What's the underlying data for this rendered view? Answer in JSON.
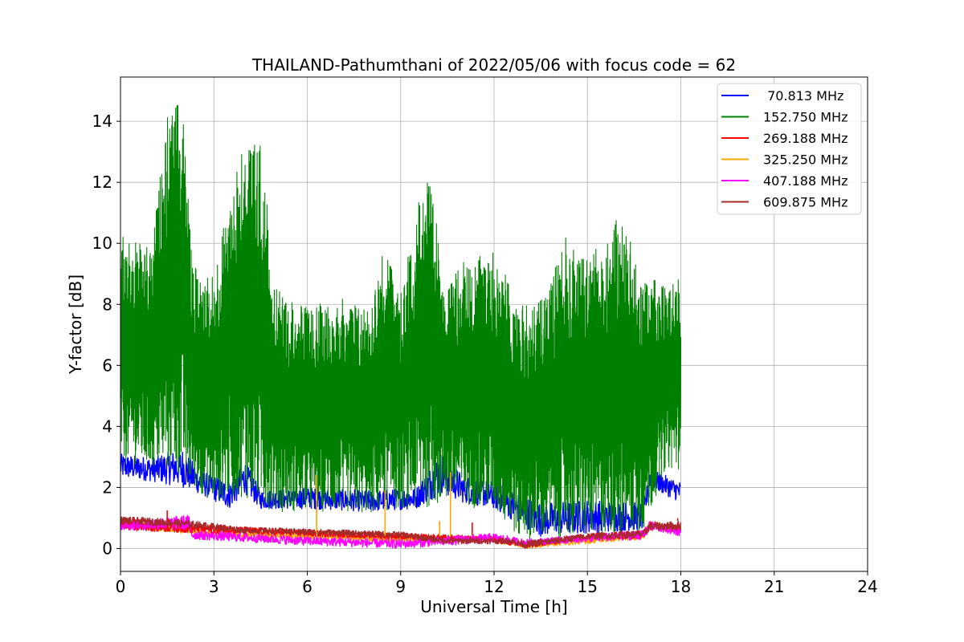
{
  "chart_data": {
    "type": "line",
    "title": "THAILAND-Pathumthani of 2022/05/06 with focus code = 62",
    "xlabel": "Universal Time [h]",
    "ylabel": "Y-factor [dB]",
    "xlim": [
      0,
      24
    ],
    "ylim": [
      -0.75,
      15.45
    ],
    "xticks": [
      0,
      3,
      6,
      9,
      12,
      15,
      18,
      21,
      24
    ],
    "yticks": [
      0,
      2,
      4,
      6,
      8,
      10,
      12,
      14
    ],
    "grid": true,
    "legend_position": "top-right",
    "series": [
      {
        "name": " 70.813 MHz",
        "color": "#0000ff",
        "band": [
          {
            "t": 0.0,
            "lo": 2.3,
            "hi": 3.1
          },
          {
            "t": 1.0,
            "lo": 2.2,
            "hi": 3.0
          },
          {
            "t": 2.0,
            "lo": 2.0,
            "hi": 3.3
          },
          {
            "t": 2.5,
            "lo": 1.8,
            "hi": 2.6
          },
          {
            "t": 3.5,
            "lo": 1.3,
            "hi": 2.2
          },
          {
            "t": 4.0,
            "lo": 1.8,
            "hi": 2.9
          },
          {
            "t": 4.5,
            "lo": 1.3,
            "hi": 1.9
          },
          {
            "t": 6.0,
            "lo": 1.3,
            "hi": 2.0
          },
          {
            "t": 8.0,
            "lo": 1.2,
            "hi": 1.9
          },
          {
            "t": 9.5,
            "lo": 1.3,
            "hi": 2.0
          },
          {
            "t": 10.3,
            "lo": 1.8,
            "hi": 3.2
          },
          {
            "t": 11.0,
            "lo": 1.5,
            "hi": 2.4
          },
          {
            "t": 12.0,
            "lo": 1.3,
            "hi": 2.2
          },
          {
            "t": 12.8,
            "lo": 0.8,
            "hi": 1.8
          },
          {
            "t": 13.5,
            "lo": 0.4,
            "hi": 1.5
          },
          {
            "t": 15.0,
            "lo": 0.5,
            "hi": 1.6
          },
          {
            "t": 16.8,
            "lo": 0.6,
            "hi": 1.5
          },
          {
            "t": 17.0,
            "lo": 2.0,
            "hi": 2.6
          },
          {
            "t": 18.0,
            "lo": 1.5,
            "hi": 2.2
          }
        ]
      },
      {
        "name": "152.750 MHz",
        "color": "#008000",
        "band": [
          {
            "t": 0.0,
            "lo": 2.9,
            "hi": 10.3
          },
          {
            "t": 1.0,
            "lo": 2.6,
            "hi": 9.8
          },
          {
            "t": 1.5,
            "lo": 2.5,
            "hi": 14.2
          },
          {
            "t": 2.0,
            "lo": 2.3,
            "hi": 14.7
          },
          {
            "t": 2.3,
            "lo": 2.0,
            "hi": 9.3
          },
          {
            "t": 3.0,
            "lo": 1.5,
            "hi": 9.0
          },
          {
            "t": 3.9,
            "lo": 1.7,
            "hi": 13.5
          },
          {
            "t": 4.5,
            "lo": 1.4,
            "hi": 13.3
          },
          {
            "t": 5.0,
            "lo": 1.2,
            "hi": 8.5
          },
          {
            "t": 6.0,
            "lo": 1.2,
            "hi": 7.9
          },
          {
            "t": 7.0,
            "lo": 1.2,
            "hi": 8.2
          },
          {
            "t": 8.0,
            "lo": 1.1,
            "hi": 8.0
          },
          {
            "t": 8.5,
            "lo": 1.2,
            "hi": 10.0
          },
          {
            "t": 9.0,
            "lo": 1.3,
            "hi": 8.3
          },
          {
            "t": 9.8,
            "lo": 1.3,
            "hi": 12.7
          },
          {
            "t": 10.5,
            "lo": 1.5,
            "hi": 8.6
          },
          {
            "t": 11.0,
            "lo": 1.4,
            "hi": 9.4
          },
          {
            "t": 12.0,
            "lo": 1.2,
            "hi": 9.8
          },
          {
            "t": 12.8,
            "lo": 0.3,
            "hi": 8.0
          },
          {
            "t": 13.5,
            "lo": 0.3,
            "hi": 8.2
          },
          {
            "t": 14.3,
            "lo": 0.3,
            "hi": 10.2
          },
          {
            "t": 15.0,
            "lo": 0.4,
            "hi": 9.5
          },
          {
            "t": 16.0,
            "lo": 0.4,
            "hi": 11.0
          },
          {
            "t": 16.8,
            "lo": 0.5,
            "hi": 9.0
          },
          {
            "t": 17.5,
            "lo": 2.6,
            "hi": 8.6
          },
          {
            "t": 18.0,
            "lo": 2.6,
            "hi": 9.0
          }
        ]
      },
      {
        "name": "269.188 MHz",
        "color": "#ff0000",
        "band": [
          {
            "t": 0.0,
            "lo": 0.6,
            "hi": 1.0
          },
          {
            "t": 2.5,
            "lo": 0.5,
            "hi": 0.8
          },
          {
            "t": 6.0,
            "lo": 0.4,
            "hi": 0.6
          },
          {
            "t": 9.0,
            "lo": 0.3,
            "hi": 0.5
          },
          {
            "t": 12.0,
            "lo": 0.2,
            "hi": 0.4
          },
          {
            "t": 13.0,
            "lo": 0.0,
            "hi": 0.2
          },
          {
            "t": 15.0,
            "lo": 0.3,
            "hi": 0.5
          },
          {
            "t": 16.8,
            "lo": 0.3,
            "hi": 0.6
          },
          {
            "t": 17.0,
            "lo": 0.6,
            "hi": 0.9
          },
          {
            "t": 18.0,
            "lo": 0.5,
            "hi": 0.8
          }
        ]
      },
      {
        "name": "325.250 MHz",
        "color": "#ffa500",
        "band": [
          {
            "t": 0.0,
            "lo": 0.7,
            "hi": 0.9
          },
          {
            "t": 3.0,
            "lo": 0.4,
            "hi": 0.6
          },
          {
            "t": 6.0,
            "lo": 0.3,
            "hi": 0.5
          },
          {
            "t": 9.0,
            "lo": 0.2,
            "hi": 0.4
          },
          {
            "t": 12.0,
            "lo": 0.2,
            "hi": 0.4
          },
          {
            "t": 13.0,
            "lo": 0.0,
            "hi": 0.2
          },
          {
            "t": 16.8,
            "lo": 0.3,
            "hi": 0.5
          },
          {
            "t": 17.0,
            "lo": 0.7,
            "hi": 0.9
          },
          {
            "t": 18.0,
            "lo": 0.5,
            "hi": 0.7
          }
        ]
      },
      {
        "name": "407.188 MHz",
        "color": "#ff00ff",
        "band": [
          {
            "t": 0.0,
            "lo": 0.6,
            "hi": 0.9
          },
          {
            "t": 2.2,
            "lo": 0.6,
            "hi": 1.1
          },
          {
            "t": 2.3,
            "lo": 0.3,
            "hi": 0.6
          },
          {
            "t": 6.0,
            "lo": 0.1,
            "hi": 0.4
          },
          {
            "t": 9.0,
            "lo": 0.0,
            "hi": 0.3
          },
          {
            "t": 12.0,
            "lo": 0.2,
            "hi": 0.5
          },
          {
            "t": 13.0,
            "lo": 0.1,
            "hi": 0.3
          },
          {
            "t": 16.8,
            "lo": 0.3,
            "hi": 0.6
          },
          {
            "t": 17.0,
            "lo": 0.6,
            "hi": 0.9
          },
          {
            "t": 18.0,
            "lo": 0.4,
            "hi": 0.7
          }
        ]
      },
      {
        "name": "609.875 MHz",
        "color": "#a52a2a",
        "band": [
          {
            "t": 0.0,
            "lo": 0.8,
            "hi": 1.05
          },
          {
            "t": 2.0,
            "lo": 0.7,
            "hi": 0.95
          },
          {
            "t": 4.0,
            "lo": 0.5,
            "hi": 0.7
          },
          {
            "t": 6.0,
            "lo": 0.45,
            "hi": 0.65
          },
          {
            "t": 9.0,
            "lo": 0.35,
            "hi": 0.55
          },
          {
            "t": 10.5,
            "lo": 0.15,
            "hi": 0.35
          },
          {
            "t": 12.5,
            "lo": 0.15,
            "hi": 0.35
          },
          {
            "t": 13.0,
            "lo": 0.0,
            "hi": 0.25
          },
          {
            "t": 15.0,
            "lo": 0.3,
            "hi": 0.5
          },
          {
            "t": 16.8,
            "lo": 0.35,
            "hi": 0.6
          },
          {
            "t": 17.0,
            "lo": 0.6,
            "hi": 0.85
          },
          {
            "t": 18.0,
            "lo": 0.6,
            "hi": 0.9
          }
        ]
      }
    ],
    "annotations_spikes": [
      {
        "series": "325.250 MHz",
        "t": 6.3,
        "y": 2.4
      },
      {
        "series": "325.250 MHz",
        "t": 8.5,
        "y": 1.9
      },
      {
        "series": "325.250 MHz",
        "t": 10.6,
        "y": 2.5
      },
      {
        "series": "325.250 MHz",
        "t": 10.25,
        "y": 0.9
      },
      {
        "series": "269.188 MHz",
        "t": 1.5,
        "y": 1.25
      },
      {
        "series": "269.188 MHz",
        "t": 11.3,
        "y": 0.85
      },
      {
        "series": "609.875 MHz",
        "t": 17.9,
        "y": 1.0
      }
    ]
  }
}
